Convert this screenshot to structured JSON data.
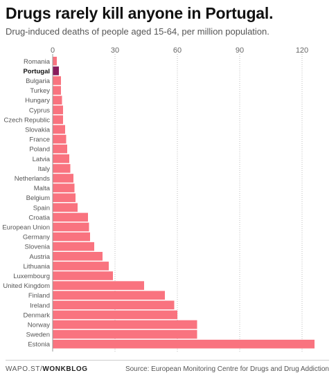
{
  "header": {
    "title": "Drugs rarely kill anyone in Portugal.",
    "subtitle": "Drug-induced deaths of people aged 15-64, per million population."
  },
  "footer": {
    "site": "WAPO.ST/",
    "section": "WONKBLOG",
    "source": "Source: European Monitoring Centre for Drugs and Drug Addiction"
  },
  "colors": {
    "bar": "#f9737f",
    "highlight": "#8a1c5c",
    "grid": "#bbbbbb",
    "tick": "#666666"
  },
  "chart_data": {
    "type": "bar",
    "orientation": "horizontal",
    "title": "Drugs rarely kill anyone in Portugal.",
    "subtitle": "Drug-induced deaths of people aged 15-64, per million population.",
    "xlabel": "",
    "ylabel": "",
    "xlim": [
      0,
      128
    ],
    "xticks": [
      0,
      30,
      60,
      90,
      120
    ],
    "xtick_labels": [
      "0",
      "30",
      "60",
      "90",
      "120"
    ],
    "grid": "vertical dotted",
    "highlight": "Portugal",
    "categories": [
      "Romania",
      "Portugal",
      "Bulgaria",
      "Turkey",
      "Hungary",
      "Cyprus",
      "Czech Republic",
      "Slovakia",
      "France",
      "Poland",
      "Latvia",
      "Italy",
      "Netherlands",
      "Malta",
      "Belgium",
      "Spain",
      "Croatia",
      "European Union",
      "Germany",
      "Slovenia",
      "Austria",
      "Lithuania",
      "Luxembourg",
      "United Kingdom",
      "Finland",
      "Ireland",
      "Denmark",
      "Norway",
      "Sweden",
      "Estonia"
    ],
    "values": [
      2,
      3,
      4,
      4,
      4.5,
      5,
      5,
      6,
      6.5,
      7,
      8,
      8.5,
      10,
      10.5,
      11,
      12,
      17,
      17.5,
      18,
      20,
      24,
      27,
      29,
      44,
      54,
      58.5,
      60,
      69.5,
      69.5,
      126
    ]
  }
}
